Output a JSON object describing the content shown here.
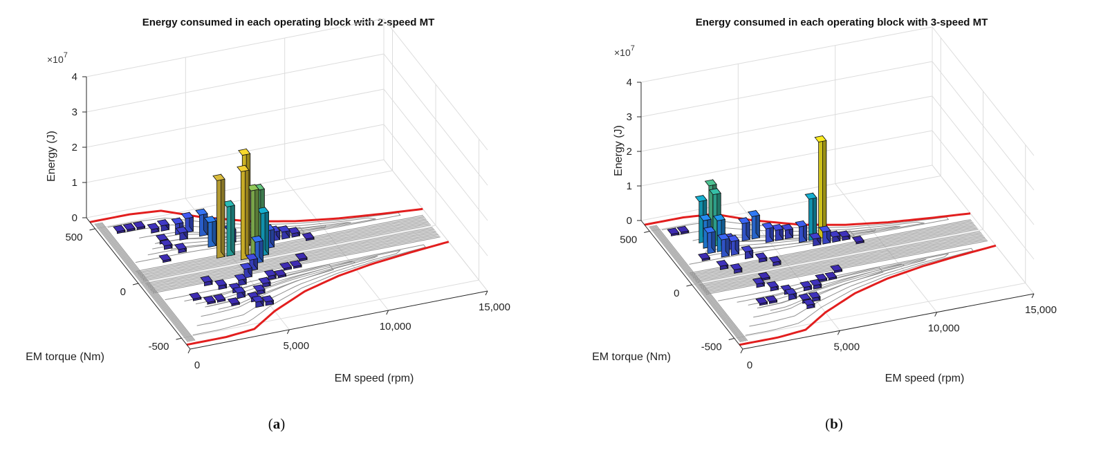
{
  "chart_data": [
    {
      "type": "bar3d",
      "panel": "(a)",
      "panel_letter": "a",
      "title": "Energy consumed in each operating block with 2-speed MT",
      "xlabel": "EM speed (rpm)",
      "ylabel": "EM torque (Nm)",
      "zlabel": "Energy (J)",
      "z_exponent_label": "×10",
      "z_exponent_power": "7",
      "x_ticks": [
        "0",
        "5,000",
        "10,000",
        "15,000"
      ],
      "y_ticks": [
        "-500",
        "0",
        "500"
      ],
      "z_ticks": [
        "0",
        "1",
        "2",
        "3",
        "4"
      ],
      "xlim": [
        0,
        15000
      ],
      "ylim": [
        -600,
        600
      ],
      "zlim": [
        0,
        4
      ],
      "z_unit_scale": 10000000,
      "bars": [
        {
          "speed": 1000,
          "torque": 450,
          "energy": 0.05
        },
        {
          "speed": 1500,
          "torque": 450,
          "energy": 0.05
        },
        {
          "speed": 2000,
          "torque": 450,
          "energy": 0.05
        },
        {
          "speed": 2500,
          "torque": 400,
          "energy": 0.1
        },
        {
          "speed": 3000,
          "torque": 400,
          "energy": 0.15
        },
        {
          "speed": 3500,
          "torque": 350,
          "energy": 0.3
        },
        {
          "speed": 4000,
          "torque": 350,
          "energy": 0.4
        },
        {
          "speed": 3500,
          "torque": 300,
          "energy": 0.2
        },
        {
          "speed": 4500,
          "torque": 300,
          "energy": 0.6
        },
        {
          "speed": 4500,
          "torque": 200,
          "energy": 0.7
        },
        {
          "speed": 5000,
          "torque": 250,
          "energy": 0.45
        },
        {
          "speed": 5500,
          "torque": 200,
          "energy": 0.35
        },
        {
          "speed": 4500,
          "torque": 100,
          "energy": 2.2
        },
        {
          "speed": 5000,
          "torque": 100,
          "energy": 1.4
        },
        {
          "speed": 6000,
          "torque": 150,
          "energy": 2.6
        },
        {
          "speed": 6500,
          "torque": 100,
          "energy": 1.7
        },
        {
          "speed": 5500,
          "torque": 50,
          "energy": 2.5
        },
        {
          "speed": 6000,
          "torque": 50,
          "energy": 1.9
        },
        {
          "speed": 6500,
          "torque": 50,
          "energy": 1.2
        },
        {
          "speed": 7000,
          "torque": 100,
          "energy": 0.5
        },
        {
          "speed": 7500,
          "torque": 150,
          "energy": 0.25
        },
        {
          "speed": 8000,
          "torque": 150,
          "energy": 0.2
        },
        {
          "speed": 8500,
          "torque": 150,
          "energy": 0.1
        },
        {
          "speed": 9000,
          "torque": 100,
          "energy": 0.05
        },
        {
          "speed": 6000,
          "torque": 0,
          "energy": 0.6
        },
        {
          "speed": 5500,
          "torque": -50,
          "energy": 0.3
        },
        {
          "speed": 5000,
          "torque": -100,
          "energy": 0.25
        },
        {
          "speed": 4500,
          "torque": -150,
          "energy": 0.15
        },
        {
          "speed": 2500,
          "torque": 300,
          "energy": 0.1
        },
        {
          "speed": 2500,
          "torque": 250,
          "energy": 0.1
        },
        {
          "speed": 3000,
          "torque": 200,
          "energy": 0.1
        },
        {
          "speed": 2000,
          "torque": 150,
          "energy": 0.05
        },
        {
          "speed": 3000,
          "torque": -100,
          "energy": 0.1
        },
        {
          "speed": 3500,
          "torque": -150,
          "energy": 0.1
        },
        {
          "speed": 4000,
          "torque": -200,
          "energy": 0.1
        },
        {
          "speed": 4000,
          "torque": -250,
          "energy": 0.15
        },
        {
          "speed": 5000,
          "torque": -250,
          "energy": 0.1
        },
        {
          "speed": 5500,
          "torque": -200,
          "energy": 0.1
        },
        {
          "speed": 6000,
          "torque": -150,
          "energy": 0.1
        },
        {
          "speed": 6500,
          "torque": -150,
          "energy": 0.05
        },
        {
          "speed": 7000,
          "torque": -100,
          "energy": 0.05
        },
        {
          "speed": 7500,
          "torque": -100,
          "energy": 0.05
        },
        {
          "speed": 8000,
          "torque": -50,
          "energy": 0.05
        },
        {
          "speed": 2000,
          "torque": -200,
          "energy": 0.05
        },
        {
          "speed": 2500,
          "torque": -250,
          "energy": 0.05
        },
        {
          "speed": 3000,
          "torque": -250,
          "energy": 0.05
        },
        {
          "speed": 3500,
          "torque": -300,
          "energy": 0.05
        },
        {
          "speed": 4500,
          "torque": -300,
          "energy": 0.1
        },
        {
          "speed": 4500,
          "torque": -350,
          "energy": 0.15
        },
        {
          "speed": 5000,
          "torque": -350,
          "energy": 0.1
        }
      ],
      "max_torque_curve": [
        {
          "speed": 0,
          "torque": 560
        },
        {
          "speed": 2000,
          "torque": 560
        },
        {
          "speed": 3500,
          "torque": 540
        },
        {
          "speed": 5000,
          "torque": 430
        },
        {
          "speed": 7000,
          "torque": 320
        },
        {
          "speed": 9000,
          "torque": 250
        },
        {
          "speed": 11000,
          "torque": 205
        },
        {
          "speed": 13000,
          "torque": 175
        },
        {
          "speed": 15000,
          "torque": 150
        }
      ],
      "min_torque_curve": [
        {
          "speed": 0,
          "torque": -560
        },
        {
          "speed": 2000,
          "torque": -560
        },
        {
          "speed": 3500,
          "torque": -540
        },
        {
          "speed": 5000,
          "torque": -430
        },
        {
          "speed": 7000,
          "torque": -320
        },
        {
          "speed": 9000,
          "torque": -250
        },
        {
          "speed": 11000,
          "torque": -205
        },
        {
          "speed": 13000,
          "torque": -175
        },
        {
          "speed": 15000,
          "torque": -150
        }
      ]
    },
    {
      "type": "bar3d",
      "panel": "(b)",
      "panel_letter": "b",
      "title": "Energy consumed in each operating block with 3-speed MT",
      "xlabel": "EM speed (rpm)",
      "ylabel": "EM torque (Nm)",
      "zlabel": "Energy (J)",
      "z_exponent_label": "×10",
      "z_exponent_power": "7",
      "x_ticks": [
        "0",
        "5,000",
        "10,000",
        "15,000"
      ],
      "y_ticks": [
        "-500",
        "0",
        "500"
      ],
      "z_ticks": [
        "0",
        "1",
        "2",
        "3",
        "4"
      ],
      "xlim": [
        0,
        15000
      ],
      "ylim": [
        -600,
        600
      ],
      "zlim": [
        0,
        4
      ],
      "z_unit_scale": 10000000,
      "bars": [
        {
          "speed": 1000,
          "torque": 450,
          "energy": 0.05
        },
        {
          "speed": 1500,
          "torque": 450,
          "energy": 0.05
        },
        {
          "speed": 2000,
          "torque": 350,
          "energy": 1.2
        },
        {
          "speed": 2500,
          "torque": 350,
          "energy": 1.6
        },
        {
          "speed": 2000,
          "torque": 300,
          "energy": 0.8
        },
        {
          "speed": 2500,
          "torque": 300,
          "energy": 1.5
        },
        {
          "speed": 2500,
          "torque": 250,
          "energy": 0.9
        },
        {
          "speed": 2000,
          "torque": 250,
          "energy": 0.6
        },
        {
          "speed": 3000,
          "torque": 250,
          "energy": 0.3
        },
        {
          "speed": 2500,
          "torque": 200,
          "energy": 0.5
        },
        {
          "speed": 3000,
          "torque": 200,
          "energy": 0.4
        },
        {
          "speed": 4000,
          "torque": 300,
          "energy": 0.5
        },
        {
          "speed": 4500,
          "torque": 300,
          "energy": 0.65
        },
        {
          "speed": 5000,
          "torque": 250,
          "energy": 0.4
        },
        {
          "speed": 5500,
          "torque": 250,
          "energy": 0.3
        },
        {
          "speed": 6000,
          "torque": 250,
          "energy": 0.25
        },
        {
          "speed": 6500,
          "torque": 200,
          "energy": 0.45
        },
        {
          "speed": 7000,
          "torque": 200,
          "energy": 1.2
        },
        {
          "speed": 7500,
          "torque": 200,
          "energy": 2.8
        },
        {
          "speed": 7000,
          "torque": 150,
          "energy": 0.2
        },
        {
          "speed": 7500,
          "torque": 150,
          "energy": 0.35
        },
        {
          "speed": 8000,
          "torque": 150,
          "energy": 0.15
        },
        {
          "speed": 8500,
          "torque": 150,
          "energy": 0.1
        },
        {
          "speed": 9000,
          "torque": 100,
          "energy": 0.05
        },
        {
          "speed": 3500,
          "torque": 150,
          "energy": 0.2
        },
        {
          "speed": 4000,
          "torque": 100,
          "energy": 0.1
        },
        {
          "speed": 4500,
          "torque": 50,
          "energy": 0.1
        },
        {
          "speed": 1500,
          "torque": 200,
          "energy": 0.05
        },
        {
          "speed": 2000,
          "torque": 100,
          "energy": 0.1
        },
        {
          "speed": 2500,
          "torque": 50,
          "energy": 0.1
        },
        {
          "speed": 3500,
          "torque": -50,
          "energy": 0.05
        },
        {
          "speed": 3000,
          "torque": -100,
          "energy": 0.1
        },
        {
          "speed": 3500,
          "torque": -150,
          "energy": 0.1
        },
        {
          "speed": 4000,
          "torque": -200,
          "energy": 0.1
        },
        {
          "speed": 4000,
          "torque": -250,
          "energy": 0.15
        },
        {
          "speed": 5000,
          "torque": -200,
          "energy": 0.1
        },
        {
          "speed": 5500,
          "torque": -200,
          "energy": 0.1
        },
        {
          "speed": 6000,
          "torque": -150,
          "energy": 0.05
        },
        {
          "speed": 6500,
          "torque": -150,
          "energy": 0.05
        },
        {
          "speed": 7000,
          "torque": -100,
          "energy": 0.05
        },
        {
          "speed": 2500,
          "torque": -250,
          "energy": 0.05
        },
        {
          "speed": 3000,
          "torque": -250,
          "energy": 0.05
        },
        {
          "speed": 4500,
          "torque": -300,
          "energy": 0.1
        },
        {
          "speed": 5000,
          "torque": -300,
          "energy": 0.1
        },
        {
          "speed": 4500,
          "torque": -350,
          "energy": 0.1
        }
      ],
      "max_torque_curve": [
        {
          "speed": 0,
          "torque": 560
        },
        {
          "speed": 2000,
          "torque": 560
        },
        {
          "speed": 3500,
          "torque": 540
        },
        {
          "speed": 5000,
          "torque": 430
        },
        {
          "speed": 7000,
          "torque": 320
        },
        {
          "speed": 9000,
          "torque": 250
        },
        {
          "speed": 11000,
          "torque": 205
        },
        {
          "speed": 13000,
          "torque": 175
        },
        {
          "speed": 15000,
          "torque": 150
        }
      ],
      "min_torque_curve": [
        {
          "speed": 0,
          "torque": -560
        },
        {
          "speed": 2000,
          "torque": -560
        },
        {
          "speed": 3500,
          "torque": -540
        },
        {
          "speed": 5000,
          "torque": -430
        },
        {
          "speed": 7000,
          "torque": -320
        },
        {
          "speed": 9000,
          "torque": -250
        },
        {
          "speed": 11000,
          "torque": -205
        },
        {
          "speed": 13000,
          "torque": -175
        },
        {
          "speed": 15000,
          "torque": -150
        }
      ]
    }
  ]
}
